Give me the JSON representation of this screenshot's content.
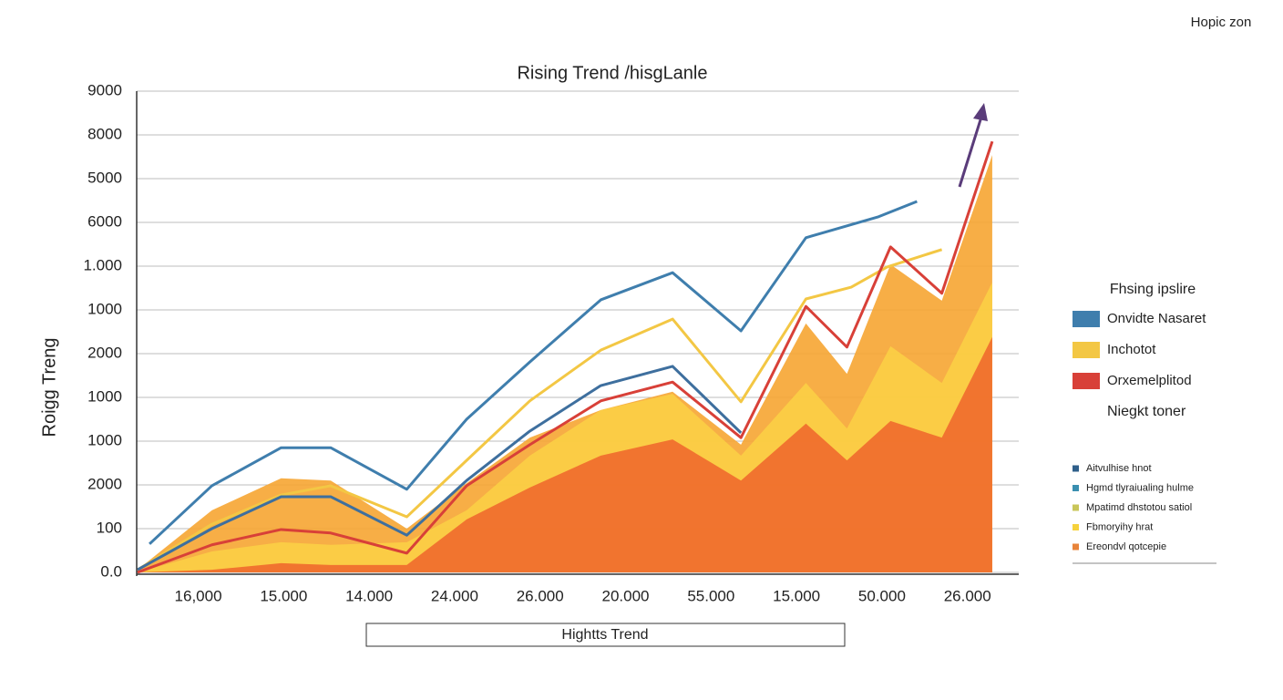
{
  "corner_label": "Hopic zon",
  "chart_data": {
    "type": "line",
    "title": "Rising Trend /hisgLanle",
    "y_label": "Roigg Treng",
    "x_label": "Hightts Trend",
    "ylim": [
      0,
      11
    ],
    "yticks": [
      {
        "value": 0,
        "label": "0.0"
      },
      {
        "value": 1,
        "label": "100"
      },
      {
        "value": 2,
        "label": "2000"
      },
      {
        "value": 3,
        "label": "1000"
      },
      {
        "value": 4,
        "label": "1000"
      },
      {
        "value": 5,
        "label": "2000"
      },
      {
        "value": 6,
        "label": "1000"
      },
      {
        "value": 7,
        "label": "1.000"
      },
      {
        "value": 8,
        "label": "6000"
      },
      {
        "value": 9,
        "label": "5000"
      },
      {
        "value": 10,
        "label": "8000"
      },
      {
        "value": 11,
        "label": "9000"
      }
    ],
    "xlim": [
      0.28,
      10.6
    ],
    "xticks": [
      {
        "value": 1,
        "label": "16,000"
      },
      {
        "value": 2,
        "label": "15.000"
      },
      {
        "value": 3,
        "label": "14.000"
      },
      {
        "value": 4,
        "label": "24.000"
      },
      {
        "value": 5,
        "label": "26.000"
      },
      {
        "value": 6,
        "label": "20.000"
      },
      {
        "value": 7,
        "label": "55.000"
      },
      {
        "value": 8,
        "label": "15.000"
      },
      {
        "value": 9,
        "label": "50.000"
      },
      {
        "value": 10,
        "label": "26.000"
      }
    ],
    "grid": true,
    "legend_title": "Fhsing ipslire",
    "legend_note": "Niegkt toner",
    "series": [
      {
        "kind": "area",
        "color": "#f6a532",
        "x": [
          0.29,
          1.16,
          1.97,
          2.55,
          3.44,
          4.14,
          4.88,
          5.71,
          6.55,
          7.35,
          8.11,
          8.59,
          9.1,
          9.7,
          10.29
        ],
        "values": [
          0.06,
          1.42,
          2.15,
          2.1,
          1.0,
          2.04,
          3.08,
          3.71,
          4.13,
          2.92,
          5.69,
          4.54,
          7.04,
          6.21,
          9.54
        ]
      },
      {
        "kind": "area",
        "color": "#fbcf45",
        "x": [
          0.29,
          1.16,
          1.97,
          2.55,
          3.44,
          4.14,
          4.88,
          5.71,
          6.55,
          7.35,
          8.11,
          8.59,
          9.1,
          9.7,
          10.29
        ],
        "values": [
          0,
          0.48,
          0.69,
          0.63,
          0.69,
          1.42,
          2.67,
          3.71,
          4.08,
          2.67,
          4.33,
          3.29,
          5.17,
          4.33,
          6.63
        ]
      },
      {
        "kind": "area",
        "color": "#ef6a2c",
        "x": [
          0.29,
          1.16,
          1.97,
          2.55,
          3.44,
          4.14,
          4.88,
          5.71,
          6.55,
          7.35,
          8.11,
          8.59,
          9.1,
          9.7,
          10.29
        ],
        "values": [
          0,
          0.06,
          0.21,
          0.17,
          0.17,
          1.21,
          1.94,
          2.67,
          3.04,
          2.1,
          3.4,
          2.56,
          3.46,
          3.08,
          5.38
        ]
      },
      {
        "kind": "line",
        "name": "Onvidte Nasaret",
        "color": "#3f7ead",
        "x": [
          0.43,
          1.16,
          1.97,
          2.55,
          3.44,
          4.14,
          4.88,
          5.71,
          6.55,
          7.35,
          8.11,
          8.96,
          9.41
        ],
        "values": [
          0.65,
          1.98,
          2.85,
          2.85,
          1.9,
          3.5,
          4.81,
          6.23,
          6.85,
          5.52,
          7.65,
          8.13,
          8.48
        ]
      },
      {
        "kind": "line",
        "name": "Inchotot",
        "color": "#f3c744",
        "x": [
          0.29,
          1.16,
          1.97,
          2.55,
          3.44,
          4.14,
          4.88,
          5.71,
          6.55,
          7.35,
          8.11,
          8.64,
          9.06,
          9.7
        ],
        "values": [
          0.06,
          1.1,
          1.77,
          1.98,
          1.27,
          2.56,
          3.92,
          5.08,
          5.79,
          3.9,
          6.25,
          6.52,
          6.98,
          7.38
        ]
      },
      {
        "kind": "line",
        "color": "#3e6f9e",
        "x": [
          0.29,
          1.16,
          1.97,
          2.55,
          3.44,
          4.14,
          4.88,
          5.71,
          6.55,
          7.35
        ],
        "values": [
          0.06,
          1.0,
          1.73,
          1.73,
          0.85,
          2.1,
          3.23,
          4.27,
          4.71,
          3.19
        ]
      },
      {
        "kind": "line",
        "name": "Orxemelplitod",
        "color": "#d84038",
        "x": [
          0.29,
          1.16,
          1.97,
          2.55,
          3.44,
          4.14,
          4.88,
          5.71,
          6.55,
          7.35,
          8.11,
          8.59,
          9.1,
          9.7,
          10.29
        ],
        "values": [
          0,
          0.63,
          0.98,
          0.9,
          0.44,
          1.98,
          2.92,
          3.92,
          4.35,
          3.08,
          6.08,
          5.15,
          7.44,
          6.38,
          9.85
        ]
      }
    ],
    "legend2": [
      {
        "label": "Aitvulhise hnot",
        "color": "#2f5f8a"
      },
      {
        "label": "Hgmd tlyraiualing hulme",
        "color": "#3a8fb0"
      },
      {
        "label": "Mpatimd dhstotou satiol",
        "color": "#c9c65a"
      },
      {
        "label": "Fbmoryihy hrat",
        "color": "#f6d23c"
      },
      {
        "label": "Ereondvl qotcepie",
        "color": "#e8843a"
      }
    ]
  }
}
